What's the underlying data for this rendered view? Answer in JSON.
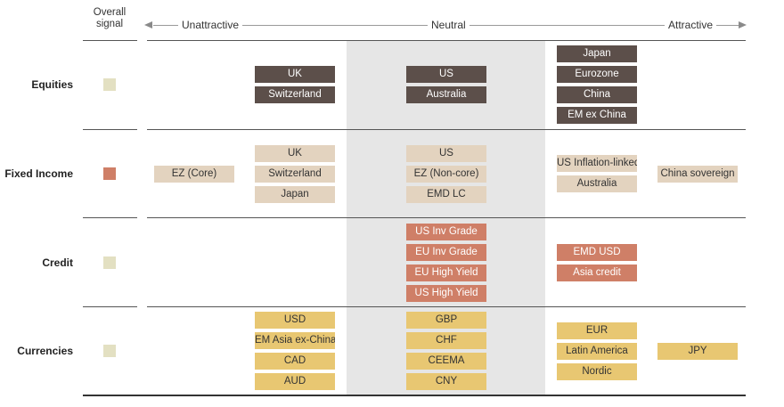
{
  "header": {
    "overall_signal": "Overall\nsignal",
    "unattractive": "Unattractive",
    "neutral": "Neutral",
    "attractive": "Attractive"
  },
  "colors": {
    "signal_neutral": "#e3e0c2",
    "signal_unattractive": "#cf7f67",
    "dark": "#5c4f4a",
    "beige": "#e3d3bf",
    "red": "#cf7f67",
    "gold": "#e8c772",
    "neutral_band": "#e6e6e6"
  },
  "rows": {
    "equities": {
      "label": "Equities",
      "signal": "neutral",
      "mid_unattractive": [
        "UK",
        "Switzerland"
      ],
      "neutral": [
        "US",
        "Australia"
      ],
      "mid_attractive": [
        "Japan",
        "Eurozone",
        "China",
        "EM ex China"
      ]
    },
    "fixed_income": {
      "label": "Fixed Income",
      "signal": "unattractive",
      "unattractive": [
        "EZ (Core)"
      ],
      "mid_unattractive": [
        "UK",
        "Switzerland",
        "Japan"
      ],
      "neutral": [
        "US",
        "EZ (Non-core)",
        "EMD LC"
      ],
      "mid_attractive": [
        "US Inflation-linked",
        "Australia"
      ],
      "attractive": [
        "China sovereign"
      ]
    },
    "credit": {
      "label": "Credit",
      "signal": "neutral",
      "neutral": [
        "US Inv Grade",
        "EU Inv Grade",
        "EU High Yield",
        "US High Yield"
      ],
      "mid_attractive": [
        "EMD USD",
        "Asia credit"
      ]
    },
    "currencies": {
      "label": "Currencies",
      "signal": "neutral",
      "mid_unattractive": [
        "USD",
        "EM Asia ex-China",
        "CAD",
        "AUD"
      ],
      "neutral": [
        "GBP",
        "CHF",
        "CEEMA",
        "CNY"
      ],
      "mid_attractive": [
        "EUR",
        "Latin America",
        "Nordic"
      ],
      "attractive": [
        "JPY"
      ]
    }
  }
}
